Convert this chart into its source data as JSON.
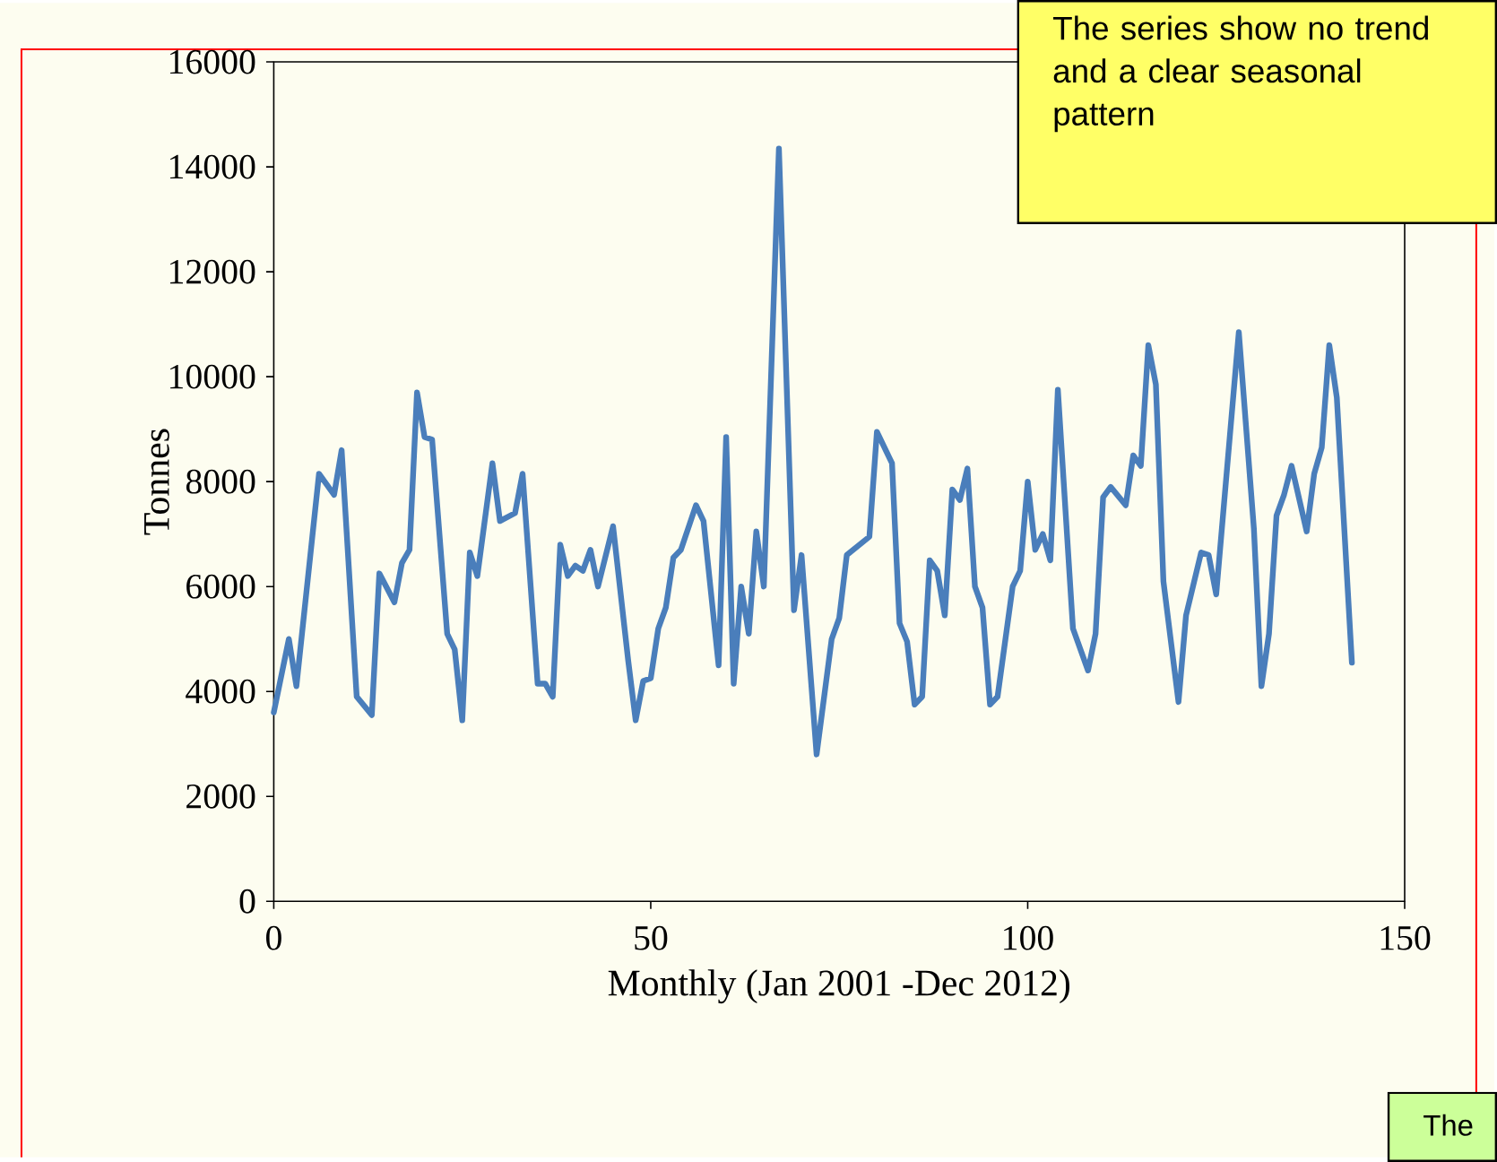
{
  "chart_data": {
    "type": "line",
    "xlabel": "Monthly  (Jan 2001 -Dec 2012)",
    "ylabel": "Tonnes",
    "annotations": [
      "The series show no trend and a clear seasonal pattern",
      "The"
    ],
    "xlim": [
      0,
      150
    ],
    "xticks": [
      0,
      50,
      100,
      150
    ],
    "ylim": [
      0,
      16000
    ],
    "yticks": [
      0,
      2000,
      4000,
      6000,
      8000,
      10000,
      12000,
      14000,
      16000
    ],
    "grid": false,
    "marker": "none",
    "line_style": "solid",
    "series": [
      {
        "color": "#4a7ebb",
        "x": [
          0,
          2,
          3,
          6,
          8,
          9,
          11,
          13,
          14,
          16,
          17,
          18,
          19,
          20,
          21,
          23,
          24,
          25,
          26,
          27,
          29,
          30,
          32,
          33,
          35,
          36,
          37,
          38,
          39,
          40,
          41,
          42,
          43,
          45,
          47,
          48,
          49,
          50,
          51,
          52,
          53,
          54,
          56,
          57,
          59,
          60,
          61,
          62,
          63,
          64,
          65,
          67,
          69,
          70,
          72,
          74,
          75,
          76,
          79,
          80,
          82,
          83,
          84,
          85,
          86,
          87,
          88,
          89,
          90,
          91,
          92,
          93,
          94,
          95,
          96,
          98,
          99,
          100,
          101,
          102,
          103,
          104,
          106,
          108,
          109,
          110,
          111,
          113,
          114,
          115,
          116,
          117,
          118,
          120,
          121,
          123,
          124,
          125,
          128,
          130,
          131,
          132,
          133,
          134,
          135,
          137,
          138,
          139,
          140,
          141,
          143
        ],
        "values": [
          3600,
          5000,
          4100,
          8150,
          7750,
          8600,
          3900,
          3550,
          6250,
          5700,
          6450,
          6700,
          9700,
          8850,
          8800,
          5100,
          4800,
          3450,
          6650,
          6200,
          8350,
          7250,
          7400,
          8150,
          4150,
          4150,
          3900,
          6800,
          6200,
          6400,
          6300,
          6700,
          6000,
          7150,
          4600,
          3450,
          4200,
          4250,
          5200,
          5600,
          6550,
          6700,
          7550,
          7250,
          4500,
          8850,
          4150,
          6000,
          5100,
          7050,
          6000,
          14350,
          5550,
          6600,
          2800,
          5000,
          5400,
          6600,
          6950,
          8950,
          8350,
          5300,
          4950,
          3750,
          3900,
          6500,
          6300,
          5450,
          7850,
          7650,
          8250,
          6000,
          5600,
          3750,
          3900,
          6000,
          6300,
          8000,
          6700,
          7000,
          6500,
          9750,
          5200,
          4400,
          5100,
          7700,
          7900,
          7550,
          8500,
          8300,
          10600,
          9850,
          6100,
          3800,
          5450,
          6650,
          6600,
          5850,
          10850,
          7100,
          4100,
          5100,
          7350,
          7750,
          8300,
          7050,
          8150,
          8650,
          10600,
          9600,
          4550
        ]
      }
    ]
  }
}
